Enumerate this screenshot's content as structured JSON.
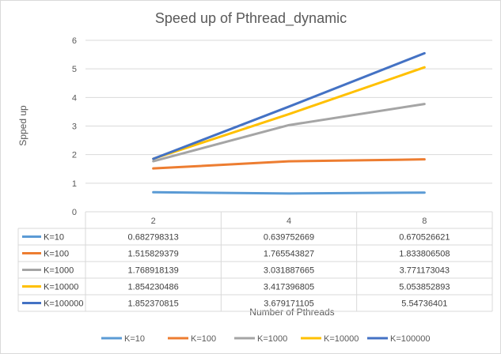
{
  "chart_data": {
    "type": "line",
    "title": "Speed up of Pthread_dynamic",
    "xlabel": "Number  of Pthreads",
    "ylabel": "Spped up",
    "categories": [
      "2",
      "4",
      "8"
    ],
    "ylim": [
      0,
      6
    ],
    "yticks": [
      "0",
      "1",
      "2",
      "3",
      "4",
      "5",
      "6"
    ],
    "grid": true,
    "legend_position": "bottom",
    "series": [
      {
        "name": "K=10",
        "color": "#5b9bd5",
        "values": [
          0.682798313,
          0.639752669,
          0.670526621
        ],
        "labels": [
          "0.682798313",
          "0.639752669",
          "0.670526621"
        ]
      },
      {
        "name": "K=100",
        "color": "#ed7d31",
        "values": [
          1.515829379,
          1.765543827,
          1.833806508
        ],
        "labels": [
          "1.515829379",
          "1.765543827",
          "1.833806508"
        ]
      },
      {
        "name": "K=1000",
        "color": "#a5a5a5",
        "values": [
          1.768918139,
          3.031887665,
          3.771173043
        ],
        "labels": [
          "1.768918139",
          "3.031887665",
          "3.771173043"
        ]
      },
      {
        "name": "K=10000",
        "color": "#ffc000",
        "values": [
          1.854230486,
          3.417396805,
          5.053852893
        ],
        "labels": [
          "1.854230486",
          "3.417396805",
          "5.053852893"
        ]
      },
      {
        "name": "K=100000",
        "color": "#4472c4",
        "values": [
          1.852370815,
          3.679171105,
          5.54736401
        ],
        "labels": [
          "1.852370815",
          "3.679171105",
          "5.54736401"
        ]
      }
    ]
  }
}
